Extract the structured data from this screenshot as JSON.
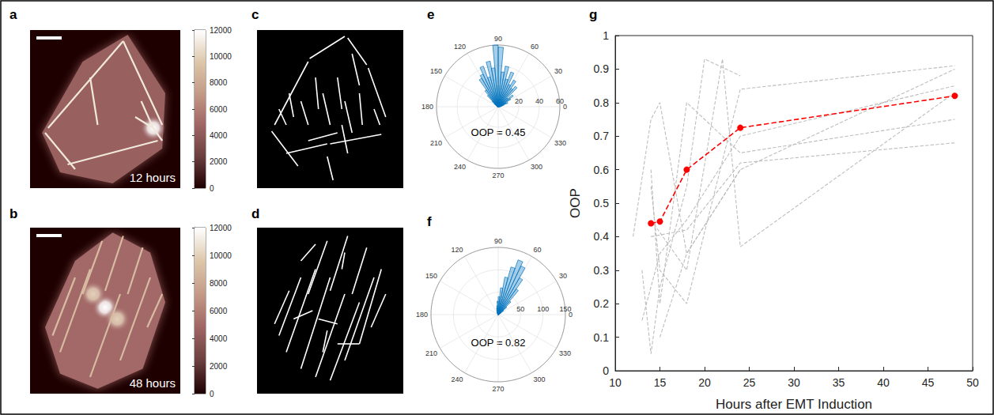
{
  "chart_data": [
    {
      "panel_label": "a",
      "type": "image",
      "annotation": "12 hours",
      "tick_labels": false,
      "xlim": [
        0,
        100
      ],
      "ylim": [
        0,
        100
      ],
      "outline": [
        [
          8,
          35
        ],
        [
          35,
          80
        ],
        [
          65,
          97
        ],
        [
          90,
          60
        ],
        [
          88,
          25
        ],
        [
          55,
          3
        ],
        [
          20,
          10
        ]
      ],
      "body_value": 4500,
      "fibers": [
        [
          12,
          38,
          62,
          93
        ],
        [
          62,
          93,
          88,
          40
        ],
        [
          25,
          15,
          85,
          30
        ],
        [
          10,
          35,
          30,
          12
        ],
        [
          70,
          45,
          82,
          38
        ],
        [
          74,
          55,
          82,
          38
        ],
        [
          82,
          38,
          88,
          30
        ],
        [
          40,
          70,
          45,
          40
        ]
      ],
      "fiber_value": 11000,
      "hotspots": [
        [
          82,
          38,
          12000
        ]
      ],
      "colorbar_range": [
        0,
        12000
      ],
      "colorbar_ticks": [
        0,
        2000,
        4000,
        6000,
        8000,
        10000,
        12000
      ],
      "colorbar_colors": [
        "#1e0000",
        "#6b3f3f",
        "#a06565",
        "#c39a86",
        "#ddc7ab",
        "#ffffff"
      ]
    },
    {
      "panel_label": "b",
      "type": "image",
      "annotation": "48 hours",
      "tick_labels": false,
      "xlim": [
        0,
        100
      ],
      "ylim": [
        0,
        100
      ],
      "outline": [
        [
          10,
          40
        ],
        [
          30,
          80
        ],
        [
          55,
          97
        ],
        [
          80,
          85
        ],
        [
          90,
          55
        ],
        [
          75,
          15
        ],
        [
          45,
          3
        ],
        [
          20,
          12
        ]
      ],
      "body_value": 5000,
      "fibers": [
        [
          15,
          35,
          30,
          70
        ],
        [
          20,
          25,
          40,
          75
        ],
        [
          40,
          10,
          60,
          60
        ],
        [
          60,
          20,
          80,
          70
        ],
        [
          35,
          60,
          48,
          92
        ],
        [
          50,
          62,
          62,
          95
        ],
        [
          65,
          60,
          75,
          88
        ],
        [
          78,
          40,
          88,
          60
        ]
      ],
      "fiber_value": 9000,
      "hotspots": [
        [
          50,
          52,
          12000
        ],
        [
          42,
          60,
          10000
        ],
        [
          58,
          45,
          10000
        ]
      ],
      "colorbar_range": [
        0,
        12000
      ],
      "colorbar_ticks": [
        0,
        2000,
        4000,
        6000,
        8000,
        10000,
        12000
      ],
      "colorbar_colors": [
        "#1e0000",
        "#6b3f3f",
        "#a06565",
        "#c39a86",
        "#ddc7ab",
        "#ffffff"
      ]
    },
    {
      "panel_label": "c",
      "type": "segments",
      "tick_labels": false,
      "color": "#ffffff",
      "xlim": [
        0,
        100
      ],
      "ylim": [
        0,
        100
      ],
      "segments": [
        [
          12,
          40,
          35,
          80
        ],
        [
          36,
          82,
          60,
          96
        ],
        [
          62,
          95,
          75,
          78
        ],
        [
          76,
          76,
          88,
          45
        ],
        [
          20,
          22,
          48,
          28
        ],
        [
          50,
          28,
          85,
          34
        ],
        [
          10,
          36,
          28,
          14
        ],
        [
          40,
          70,
          42,
          50
        ],
        [
          45,
          60,
          50,
          40
        ],
        [
          55,
          70,
          58,
          50
        ],
        [
          60,
          55,
          65,
          35
        ],
        [
          30,
          55,
          35,
          40
        ],
        [
          70,
          60,
          72,
          40
        ],
        [
          48,
          20,
          52,
          5
        ],
        [
          22,
          60,
          25,
          45
        ],
        [
          65,
          85,
          70,
          65
        ],
        [
          80,
          50,
          84,
          40
        ],
        [
          35,
          30,
          55,
          35
        ],
        [
          15,
          50,
          20,
          40
        ],
        [
          58,
          40,
          62,
          22
        ]
      ]
    },
    {
      "panel_label": "d",
      "type": "segments",
      "tick_labels": false,
      "color": "#ffffff",
      "xlim": [
        0,
        100
      ],
      "ylim": [
        0,
        100
      ],
      "segments": [
        [
          15,
          35,
          30,
          70
        ],
        [
          20,
          25,
          40,
          75
        ],
        [
          30,
          15,
          50,
          70
        ],
        [
          40,
          10,
          60,
          60
        ],
        [
          50,
          8,
          70,
          55
        ],
        [
          60,
          20,
          80,
          70
        ],
        [
          70,
          30,
          85,
          75
        ],
        [
          35,
          60,
          48,
          92
        ],
        [
          50,
          62,
          62,
          95
        ],
        [
          65,
          60,
          75,
          88
        ],
        [
          25,
          45,
          38,
          50
        ],
        [
          42,
          45,
          55,
          42
        ],
        [
          78,
          40,
          88,
          60
        ],
        [
          12,
          42,
          22,
          62
        ],
        [
          55,
          30,
          70,
          30
        ],
        [
          30,
          80,
          40,
          90
        ],
        [
          58,
          75,
          60,
          85
        ],
        [
          45,
          25,
          48,
          38
        ]
      ]
    },
    {
      "panel_label": "e",
      "type": "polar_histogram",
      "annotation": "OOP = 0.45",
      "color": "#0072bd",
      "bins": [
        0,
        5,
        10,
        15,
        20,
        25,
        30,
        35,
        40,
        45,
        50,
        55,
        60,
        65,
        70,
        75,
        80,
        85,
        90,
        95,
        100,
        105,
        110,
        115,
        120,
        125,
        130,
        135,
        140,
        145,
        150,
        155,
        160,
        165,
        170,
        175,
        180
      ],
      "counts": [
        2,
        3,
        4,
        6,
        10,
        8,
        14,
        18,
        12,
        26,
        22,
        30,
        24,
        36,
        28,
        40,
        34,
        58,
        60,
        38,
        45,
        30,
        42,
        35,
        32,
        20,
        15,
        8,
        5,
        3,
        2,
        1,
        1,
        0,
        0,
        1
      ],
      "rlim": [
        0,
        60
      ],
      "rticks": [
        20,
        40,
        60
      ],
      "thetalim": [
        0,
        360
      ],
      "thetaticks": [
        0,
        30,
        60,
        90,
        120,
        150,
        180,
        210,
        240,
        270,
        300,
        330
      ]
    },
    {
      "panel_label": "f",
      "type": "polar_histogram",
      "annotation": "OOP = 0.82",
      "color": "#0072bd",
      "bins": [
        0,
        5,
        10,
        15,
        20,
        25,
        30,
        35,
        40,
        45,
        50,
        55,
        60,
        65,
        70,
        75,
        80,
        85,
        90,
        95,
        100,
        105,
        110,
        115,
        120,
        125,
        130,
        135,
        140,
        145,
        150,
        155,
        160,
        165,
        170,
        175,
        180
      ],
      "counts": [
        1,
        1,
        2,
        2,
        3,
        5,
        8,
        15,
        25,
        40,
        70,
        95,
        120,
        130,
        110,
        85,
        60,
        40,
        30,
        20,
        15,
        10,
        6,
        4,
        3,
        2,
        2,
        1,
        1,
        1,
        0,
        1,
        0,
        0,
        1,
        1
      ],
      "rlim": [
        0,
        150
      ],
      "rticks": [
        50,
        100,
        150
      ],
      "thetalim": [
        0,
        360
      ],
      "thetaticks": [
        0,
        30,
        60,
        90,
        120,
        150,
        180,
        210,
        240,
        270,
        300,
        330
      ]
    },
    {
      "panel_label": "g",
      "type": "line",
      "x_label": "Hours after EMT Induction",
      "y_label": "OOP",
      "grid": false,
      "xlim": [
        10,
        50
      ],
      "xticks": [
        10,
        15,
        20,
        25,
        30,
        35,
        40,
        45,
        50
      ],
      "ylim": [
        0,
        1
      ],
      "yticks": [
        0,
        0.1,
        0.2,
        0.3,
        0.4,
        0.5,
        0.6,
        0.7,
        0.8,
        0.9,
        1
      ],
      "series": [
        {
          "x": [
            12,
            14,
            15,
            18,
            24
          ],
          "values": [
            0.4,
            0.75,
            0.8,
            0.35,
            0.6
          ],
          "color": "#bdbdbd",
          "line_style": "dashed",
          "marker": "none"
        },
        {
          "x": [
            13,
            14,
            15,
            18,
            20,
            24
          ],
          "values": [
            0.3,
            0.05,
            0.25,
            0.55,
            0.93,
            0.88
          ],
          "color": "#bdbdbd",
          "line_style": "dashed",
          "marker": "none"
        },
        {
          "x": [
            14,
            15,
            18,
            24,
            48
          ],
          "values": [
            0.55,
            0.3,
            0.2,
            0.84,
            0.91
          ],
          "color": "#bdbdbd",
          "line_style": "dashed",
          "marker": "none"
        },
        {
          "x": [
            13,
            15,
            18,
            24,
            48
          ],
          "values": [
            0.15,
            0.35,
            0.45,
            0.7,
            0.85
          ],
          "color": "#bdbdbd",
          "line_style": "dashed",
          "marker": "none"
        },
        {
          "x": [
            14,
            18,
            22,
            24,
            48
          ],
          "values": [
            0.45,
            0.3,
            0.93,
            0.37,
            0.83
          ],
          "color": "#bdbdbd",
          "line_style": "dashed",
          "marker": "none"
        },
        {
          "x": [
            14,
            15,
            18,
            24,
            48
          ],
          "values": [
            0.6,
            0.2,
            0.8,
            0.65,
            0.75
          ],
          "color": "#bdbdbd",
          "line_style": "dashed",
          "marker": "none"
        },
        {
          "x": [
            15,
            18,
            24,
            48
          ],
          "values": [
            0.1,
            0.35,
            0.6,
            0.9
          ],
          "color": "#bdbdbd",
          "line_style": "dashed",
          "marker": "none"
        },
        {
          "x": [
            14,
            18,
            24,
            48
          ],
          "values": [
            0.4,
            0.42,
            0.62,
            0.68
          ],
          "color": "#bdbdbd",
          "line_style": "dashed",
          "marker": "none"
        },
        {
          "x": [
            14,
            15,
            18,
            24,
            48
          ],
          "values": [
            0.44,
            0.445,
            0.6,
            0.725,
            0.82
          ],
          "color": "#ff0000",
          "line_style": "dashed",
          "marker": "circle"
        }
      ]
    }
  ]
}
